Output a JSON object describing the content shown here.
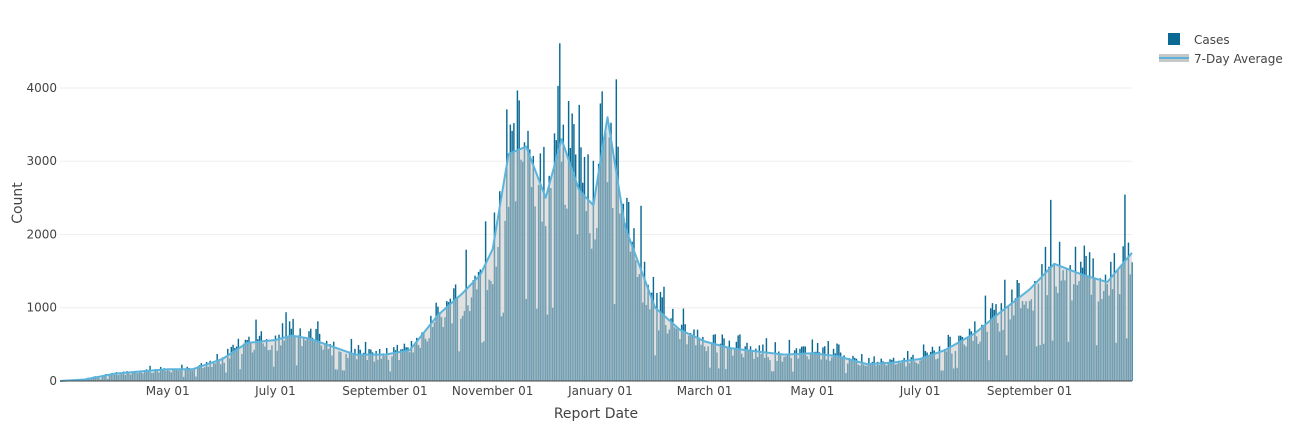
{
  "chart_data": {
    "type": "bar",
    "xlabel": "Report Date",
    "ylabel": "Count",
    "x_start": "2020-03-01",
    "x_end": "2021-10-29",
    "ylim": [
      0,
      4900
    ],
    "y_ticks": [
      0,
      1000,
      2000,
      3000,
      4000
    ],
    "x_ticks": [
      {
        "date": "2020-05-01",
        "label": "May 01"
      },
      {
        "date": "2020-07-01",
        "label": "July 01"
      },
      {
        "date": "2020-09-01",
        "label": "September 01"
      },
      {
        "date": "2020-11-01",
        "label": "November 01"
      },
      {
        "date": "2021-01-01",
        "label": "January 01"
      },
      {
        "date": "2021-03-01",
        "label": "March 01"
      },
      {
        "date": "2021-05-01",
        "label": "May 01"
      },
      {
        "date": "2021-07-01",
        "label": "July 01"
      },
      {
        "date": "2021-09-01",
        "label": "September 01"
      }
    ],
    "grid": "horizontal",
    "legend_position": "top-right",
    "series": [
      {
        "name": "Cases",
        "type": "bar",
        "color": "#0a6a94",
        "x": [
          "2020-03-01",
          "2020-03-15",
          "2020-04-01",
          "2020-04-15",
          "2020-05-01",
          "2020-05-15",
          "2020-06-01",
          "2020-06-15",
          "2020-07-01",
          "2020-07-10",
          "2020-07-20",
          "2020-08-01",
          "2020-08-15",
          "2020-09-01",
          "2020-09-15",
          "2020-10-01",
          "2020-10-15",
          "2020-10-25",
          "2020-11-01",
          "2020-11-10",
          "2020-11-20",
          "2020-12-01",
          "2020-12-10",
          "2020-12-20",
          "2020-12-28",
          "2021-01-05",
          "2021-01-15",
          "2021-02-01",
          "2021-02-15",
          "2021-03-01",
          "2021-03-15",
          "2021-04-01",
          "2021-04-15",
          "2021-05-01",
          "2021-05-15",
          "2021-06-01",
          "2021-06-15",
          "2021-07-01",
          "2021-07-15",
          "2021-08-01",
          "2021-08-15",
          "2021-09-01",
          "2021-09-15",
          "2021-10-01",
          "2021-10-15",
          "2021-10-29"
        ],
        "y": [
          0,
          20,
          100,
          130,
          160,
          160,
          300,
          520,
          560,
          620,
          580,
          480,
          360,
          360,
          420,
          900,
          1200,
          1450,
          1800,
          3100,
          3200,
          2500,
          3300,
          2600,
          2400,
          3600,
          2100,
          1000,
          700,
          540,
          450,
          400,
          360,
          380,
          340,
          230,
          250,
          300,
          420,
          650,
          930,
          1250,
          1600,
          1450,
          1350,
          1750
        ]
      },
      {
        "name": "7-Day Average",
        "type": "area",
        "color": "#5ab4dc",
        "fill_color": "#c8c8c8",
        "x": [
          "2020-03-01",
          "2020-03-15",
          "2020-04-01",
          "2020-04-15",
          "2020-05-01",
          "2020-05-15",
          "2020-06-01",
          "2020-06-15",
          "2020-07-01",
          "2020-07-10",
          "2020-07-20",
          "2020-08-01",
          "2020-08-15",
          "2020-09-01",
          "2020-09-15",
          "2020-10-01",
          "2020-10-15",
          "2020-10-25",
          "2020-11-01",
          "2020-11-10",
          "2020-11-20",
          "2020-12-01",
          "2020-12-10",
          "2020-12-20",
          "2020-12-28",
          "2021-01-05",
          "2021-01-15",
          "2021-02-01",
          "2021-02-15",
          "2021-03-01",
          "2021-03-15",
          "2021-04-01",
          "2021-04-15",
          "2021-05-01",
          "2021-05-15",
          "2021-06-01",
          "2021-06-15",
          "2021-07-01",
          "2021-07-15",
          "2021-08-01",
          "2021-08-15",
          "2021-09-01",
          "2021-09-15",
          "2021-10-01",
          "2021-10-15",
          "2021-10-29"
        ],
        "y": [
          0,
          20,
          100,
          130,
          160,
          160,
          300,
          520,
          560,
          620,
          580,
          480,
          360,
          360,
          420,
          900,
          1200,
          1450,
          1800,
          3100,
          3200,
          2500,
          3300,
          2600,
          2400,
          3600,
          2100,
          1000,
          700,
          540,
          450,
          400,
          360,
          380,
          340,
          230,
          250,
          300,
          420,
          650,
          930,
          1250,
          1600,
          1450,
          1350,
          1750
        ]
      }
    ]
  }
}
